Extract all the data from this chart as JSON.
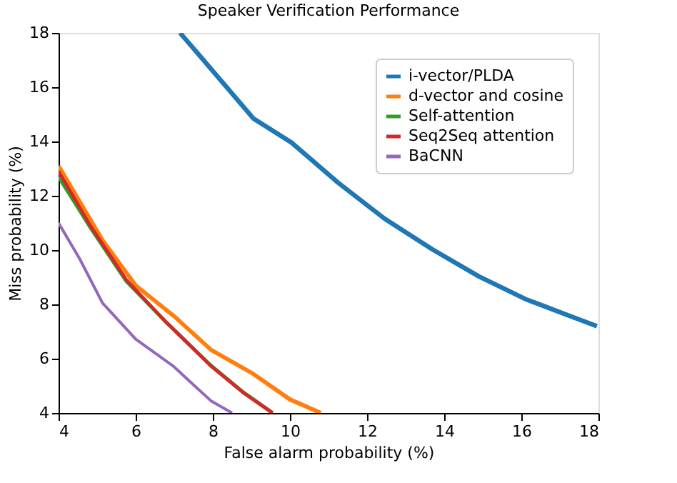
{
  "chart_data": {
    "type": "line",
    "title": "Speaker Verification Performance",
    "xlabel": "False alarm probability (%)",
    "ylabel": "Miss probability (%)",
    "xlim": [
      4,
      18
    ],
    "ylim": [
      4,
      18
    ],
    "xticks": [
      4,
      6,
      8,
      10,
      12,
      14,
      16,
      18
    ],
    "yticks": [
      4,
      6,
      8,
      10,
      12,
      14,
      16,
      18
    ],
    "grid": false,
    "legend": "top right",
    "marker": "none",
    "line_style": "solid",
    "series": [
      {
        "name": "i-vector/PLDA",
        "color": "#1f77b4",
        "x": [
          7.15,
          7.6,
          9.05,
          10.04,
          11.25,
          12.46,
          13.7,
          14.9,
          16.1,
          17.1,
          17.96
        ],
        "values": [
          18,
          17.26,
          14.85,
          13.96,
          12.48,
          11.15,
          10.02,
          9.03,
          8.2,
          7.66,
          7.2
        ]
      },
      {
        "name": "d-vector and cosine",
        "color": "#ff7f0e",
        "x": [
          4,
          5.14,
          6.0,
          7.0,
          7.95,
          9.05,
          10.0,
          10.8
        ],
        "values": [
          13.1,
          10.36,
          8.7,
          7.56,
          6.33,
          5.44,
          4.5,
          4.0
        ]
      },
      {
        "name": "Self-attention",
        "color": "#2ca02c",
        "x": [
          4,
          4.84,
          5.76,
          6.75,
          7.95,
          8.8,
          9.55
        ],
        "values": [
          12.7,
          10.8,
          8.85,
          7.4,
          5.75,
          4.75,
          4.0
        ]
      },
      {
        "name": "Seq2Seq attention",
        "color": "#d62728",
        "x": [
          4,
          4.84,
          5.76,
          6.75,
          7.95,
          8.8,
          9.55
        ],
        "values": [
          12.9,
          10.86,
          8.9,
          7.4,
          5.73,
          4.74,
          4.0
        ]
      },
      {
        "name": "BaCNN",
        "color": "#9467bd",
        "x": [
          4,
          4.55,
          5.14,
          6.0,
          6.97,
          7.95,
          8.5
        ],
        "values": [
          11.0,
          9.67,
          8.05,
          6.72,
          5.73,
          4.45,
          4.0
        ]
      }
    ]
  }
}
